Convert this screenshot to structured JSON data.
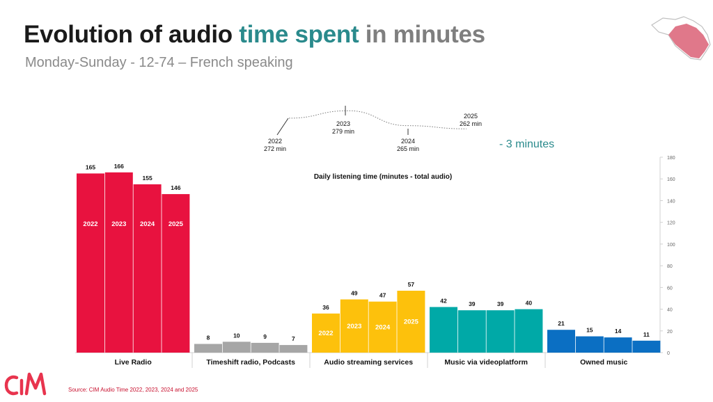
{
  "title": {
    "part1": "Evolution of audio ",
    "highlight": "time spent",
    "part2": " in minutes"
  },
  "subtitle": "Monday-Sunday - 12-74 – French speaking",
  "note": "- 3 minutes",
  "source": "Source: CIM Audio Time 2022, 2023, 2024 and 2025",
  "logo_text": "CIM",
  "colors": {
    "title": "#1a1a1a",
    "highlight": "#2a8a8c",
    "title_grey": "#7f7f7f",
    "note": "#2a8a8c",
    "source": "#c8102e",
    "logo": "#e8344e",
    "map": "#e0788a"
  },
  "totals": [
    {
      "year": "2022",
      "label": "272 min",
      "value": 272
    },
    {
      "year": "2023",
      "label": "279 min",
      "value": 279
    },
    {
      "year": "2024",
      "label": "265 min",
      "value": 265
    },
    {
      "year": "2025",
      "label": "262 min",
      "value": 262
    }
  ],
  "chart_data": {
    "type": "bar",
    "title": "Daily listening  time (minutes - total audio)",
    "categories": [
      "Live Radio",
      "Timeshift radio, Podcasts",
      "Audio streaming services",
      "Music via videoplatform",
      "Owned music"
    ],
    "series_names": [
      "2022",
      "2023",
      "2024",
      "2025"
    ],
    "values": [
      [
        165,
        166,
        155,
        146
      ],
      [
        8,
        10,
        9,
        7
      ],
      [
        36,
        49,
        47,
        57
      ],
      [
        42,
        39,
        39,
        40
      ],
      [
        21,
        15,
        14,
        11
      ]
    ],
    "colors": [
      "#e8123f",
      "#a6a6a6",
      "#fdc10c",
      "#00a9a7",
      "#0b6fc3"
    ],
    "in_bar_year_labels": [
      true,
      false,
      true,
      false,
      false
    ],
    "ylim": [
      0,
      180
    ],
    "yticks": [
      0,
      20,
      40,
      60,
      80,
      100,
      120,
      140,
      160,
      180
    ],
    "yaxis_side": "right",
    "grid": false
  }
}
